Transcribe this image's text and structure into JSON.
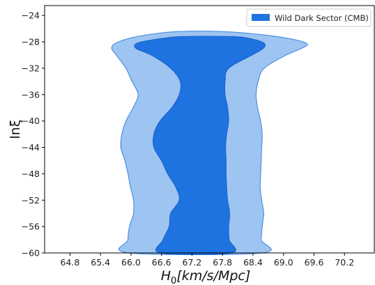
{
  "chart_data": {
    "type": "area",
    "title": "",
    "xlabel_parts": {
      "main": "H",
      "sub": "0",
      "rest": "[km/s/Mpc]"
    },
    "ylabel": "lnξ",
    "xlim": [
      64.3,
      70.8
    ],
    "ylim": [
      -60,
      -22.5
    ],
    "xticks": [
      "64.8",
      "65.4",
      "66.0",
      "66.6",
      "67.2",
      "67.8",
      "68.4",
      "69.0",
      "69.6",
      "70.2"
    ],
    "yticks": [
      "-24",
      "-28",
      "-32",
      "-36",
      "-40",
      "-44",
      "-48",
      "-52",
      "-56",
      "-60"
    ],
    "legend": {
      "label": "Wild Dark Sector (CMB)",
      "position": "top-right",
      "color": "#1e73e0"
    },
    "colors": {
      "outer_fill": "#9ec4f2",
      "outer_stroke": "#4b8fe0",
      "inner_fill": "#1e73e0",
      "inner_stroke": "#1a66cc"
    },
    "series": [
      {
        "region": "outer",
        "boundary": [
          {
            "y": -60,
            "x_left": 65.96,
            "x_right": 68.57
          },
          {
            "y": -58,
            "x_left": 65.94,
            "x_right": 68.56
          },
          {
            "y": -56,
            "x_left": 65.97,
            "x_right": 68.58
          },
          {
            "y": -54,
            "x_left": 66.05,
            "x_right": 68.61
          },
          {
            "y": -52,
            "x_left": 66.05,
            "x_right": 68.57
          },
          {
            "y": -50,
            "x_left": 65.99,
            "x_right": 68.54
          },
          {
            "y": -48,
            "x_left": 65.94,
            "x_right": 68.55
          },
          {
            "y": -46,
            "x_left": 65.88,
            "x_right": 68.56
          },
          {
            "y": -44,
            "x_left": 65.8,
            "x_right": 68.57
          },
          {
            "y": -42,
            "x_left": 65.82,
            "x_right": 68.58
          },
          {
            "y": -40,
            "x_left": 65.9,
            "x_right": 68.55
          },
          {
            "y": -38,
            "x_left": 66.04,
            "x_right": 68.49
          },
          {
            "y": -36,
            "x_left": 66.14,
            "x_right": 68.46
          },
          {
            "y": -34,
            "x_left": 66.02,
            "x_right": 68.5
          },
          {
            "y": -32,
            "x_left": 65.9,
            "x_right": 68.62
          },
          {
            "y": -30,
            "x_left": 65.71,
            "x_right": 69.05
          },
          {
            "y": -29,
            "x_left": 65.62,
            "x_right": 69.35
          },
          {
            "y": -28.2,
            "x_left": 65.7,
            "x_right": 69.45
          },
          {
            "y": -27.3,
            "x_left": 66.05,
            "x_right": 68.95
          },
          {
            "y": -26.6,
            "x_left": 66.65,
            "x_right": 68.15
          },
          {
            "y": -26.4,
            "x_left": 67.1,
            "x_right": 67.6
          }
        ]
      },
      {
        "region": "inner",
        "boundary": [
          {
            "y": -60,
            "x_left": 66.58,
            "x_right": 67.97
          },
          {
            "y": -58,
            "x_left": 66.63,
            "x_right": 67.93
          },
          {
            "y": -56,
            "x_left": 66.75,
            "x_right": 67.92
          },
          {
            "y": -54,
            "x_left": 66.78,
            "x_right": 67.94
          },
          {
            "y": -52,
            "x_left": 66.95,
            "x_right": 67.9
          },
          {
            "y": -50,
            "x_left": 66.88,
            "x_right": 67.88
          },
          {
            "y": -48,
            "x_left": 66.72,
            "x_right": 67.87
          },
          {
            "y": -46,
            "x_left": 66.6,
            "x_right": 67.87
          },
          {
            "y": -44,
            "x_left": 66.45,
            "x_right": 67.86
          },
          {
            "y": -42,
            "x_left": 66.45,
            "x_right": 67.88
          },
          {
            "y": -40,
            "x_left": 66.57,
            "x_right": 67.92
          },
          {
            "y": -38,
            "x_left": 66.8,
            "x_right": 67.9
          },
          {
            "y": -36,
            "x_left": 66.95,
            "x_right": 67.85
          },
          {
            "y": -34,
            "x_left": 66.97,
            "x_right": 67.85
          },
          {
            "y": -32,
            "x_left": 66.78,
            "x_right": 67.92
          },
          {
            "y": -30,
            "x_left": 66.4,
            "x_right": 68.38
          },
          {
            "y": -29,
            "x_left": 66.1,
            "x_right": 68.6
          },
          {
            "y": -28.2,
            "x_left": 66.12,
            "x_right": 68.62
          },
          {
            "y": -27.6,
            "x_left": 66.5,
            "x_right": 68.4
          },
          {
            "y": -27.2,
            "x_left": 67.0,
            "x_right": 68.0
          }
        ]
      }
    ]
  }
}
